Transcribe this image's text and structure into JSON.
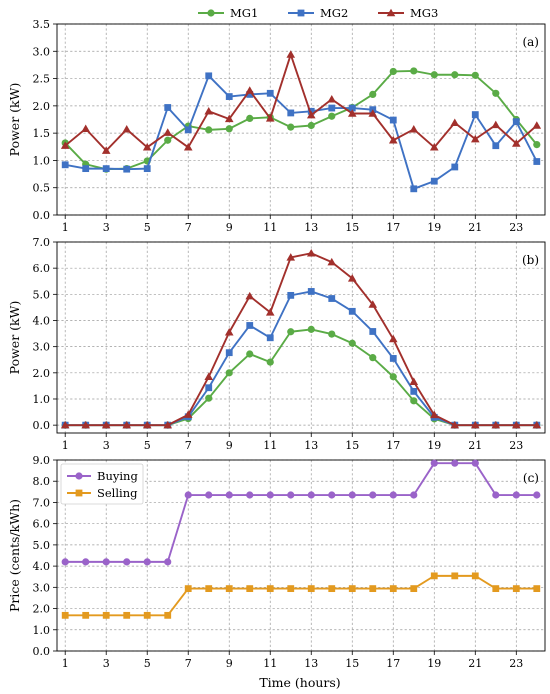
{
  "colors": {
    "MG1": "#5aab46",
    "MG2": "#3f72c4",
    "MG3": "#a2302c",
    "Buying": "#9a63c9",
    "Selling": "#e39a1f",
    "grid": "#9a9a9a"
  },
  "legend_top": [
    "MG1",
    "MG2",
    "MG3"
  ],
  "xlabel": "Time (hours)",
  "chart_data": [
    {
      "type": "line",
      "panel_label": "(a)",
      "ylabel": "Power (kW)",
      "ylim": [
        0,
        3.5
      ],
      "yticks": [
        0,
        0.5,
        1,
        1.5,
        2,
        2.5,
        3,
        3.5
      ],
      "ytick_labels": [
        "0.0",
        "0.5",
        "1.0",
        "1.5",
        "2.0",
        "2.5",
        "3.0",
        "3.5"
      ],
      "xlim": [
        0.6,
        24.4
      ],
      "xticks": [
        1,
        3,
        5,
        7,
        9,
        11,
        13,
        15,
        17,
        19,
        21,
        23
      ],
      "grid": true,
      "x": [
        1,
        2,
        3,
        4,
        5,
        6,
        7,
        8,
        9,
        10,
        11,
        12,
        13,
        14,
        15,
        16,
        17,
        18,
        19,
        20,
        21,
        22,
        23,
        24
      ],
      "series": [
        {
          "name": "MG1",
          "marker": "circle",
          "values": [
            1.32,
            0.93,
            0.84,
            0.85,
            0.99,
            1.37,
            1.63,
            1.56,
            1.58,
            1.77,
            1.79,
            1.61,
            1.64,
            1.81,
            1.97,
            2.21,
            2.63,
            2.64,
            2.57,
            2.57,
            2.56,
            2.23,
            1.75,
            1.29
          ]
        },
        {
          "name": "MG2",
          "marker": "square",
          "values": [
            0.92,
            0.85,
            0.85,
            0.84,
            0.85,
            1.97,
            1.56,
            2.55,
            2.17,
            2.21,
            2.23,
            1.87,
            1.9,
            1.96,
            1.96,
            1.93,
            1.74,
            0.48,
            0.62,
            0.88,
            1.84,
            1.27,
            1.71,
            0.98
          ]
        },
        {
          "name": "MG3",
          "marker": "triangle",
          "values": [
            1.27,
            1.58,
            1.18,
            1.57,
            1.24,
            1.51,
            1.24,
            1.9,
            1.76,
            2.28,
            1.77,
            2.94,
            1.83,
            2.12,
            1.86,
            1.86,
            1.37,
            1.57,
            1.24,
            1.69,
            1.39,
            1.65,
            1.31,
            1.64
          ]
        }
      ]
    },
    {
      "type": "line",
      "panel_label": "(b)",
      "ylabel": "Power (kW)",
      "ylim": [
        -0.3,
        7.0
      ],
      "yticks": [
        0,
        1,
        2,
        3,
        4,
        5,
        6,
        7
      ],
      "ytick_labels": [
        "0.0",
        "1.0",
        "2.0",
        "3.0",
        "4.0",
        "5.0",
        "6.0",
        "7.0"
      ],
      "xlim": [
        0.6,
        24.4
      ],
      "xticks": [
        1,
        3,
        5,
        7,
        9,
        11,
        13,
        15,
        17,
        19,
        21,
        23
      ],
      "grid": true,
      "x": [
        1,
        2,
        3,
        4,
        5,
        6,
        7,
        8,
        9,
        10,
        11,
        12,
        13,
        14,
        15,
        16,
        17,
        18,
        19,
        20,
        21,
        22,
        23,
        24
      ],
      "series": [
        {
          "name": "MG1",
          "marker": "circle",
          "values": [
            0,
            0,
            0,
            0,
            0,
            0,
            0.25,
            1.03,
            2.0,
            2.72,
            2.41,
            3.57,
            3.66,
            3.48,
            3.13,
            2.58,
            1.85,
            0.93,
            0.24,
            0,
            0,
            0,
            0,
            0
          ]
        },
        {
          "name": "MG2",
          "marker": "square",
          "values": [
            0,
            0,
            0,
            0,
            0,
            0,
            0.32,
            1.43,
            2.77,
            3.81,
            3.34,
            4.96,
            5.11,
            4.84,
            4.35,
            3.58,
            2.55,
            1.29,
            0.3,
            0,
            0,
            0,
            0,
            0
          ]
        },
        {
          "name": "MG3",
          "marker": "triangle",
          "values": [
            0,
            0,
            0,
            0,
            0,
            0,
            0.4,
            1.85,
            3.55,
            4.93,
            4.31,
            6.41,
            6.57,
            6.23,
            5.61,
            4.61,
            3.29,
            1.66,
            0.39,
            0,
            0,
            0,
            0,
            0
          ]
        }
      ]
    },
    {
      "type": "line",
      "panel_label": "(c)",
      "ylabel": "Price (cents/kWh)",
      "ylim": [
        0,
        9.0
      ],
      "yticks": [
        0,
        1,
        2,
        3,
        4,
        5,
        6,
        7,
        8,
        9
      ],
      "ytick_labels": [
        "0.0",
        "1.0",
        "2.0",
        "3.0",
        "4.0",
        "5.0",
        "6.0",
        "7.0",
        "8.0",
        "9.0"
      ],
      "xlim": [
        0.6,
        24.4
      ],
      "xticks": [
        1,
        3,
        5,
        7,
        9,
        11,
        13,
        15,
        17,
        19,
        21,
        23
      ],
      "grid": true,
      "legend_placement": "top-left",
      "x": [
        1,
        2,
        3,
        4,
        5,
        6,
        7,
        8,
        9,
        10,
        11,
        12,
        13,
        14,
        15,
        16,
        17,
        18,
        19,
        20,
        21,
        22,
        23,
        24
      ],
      "series": [
        {
          "name": "Buying",
          "marker": "circle",
          "values": [
            4.2,
            4.2,
            4.2,
            4.2,
            4.2,
            4.2,
            7.35,
            7.35,
            7.35,
            7.35,
            7.35,
            7.35,
            7.35,
            7.35,
            7.35,
            7.35,
            7.35,
            7.35,
            8.85,
            8.85,
            8.85,
            7.35,
            7.35,
            7.35
          ]
        },
        {
          "name": "Selling",
          "marker": "square",
          "values": [
            1.68,
            1.68,
            1.68,
            1.68,
            1.68,
            1.68,
            2.94,
            2.94,
            2.94,
            2.94,
            2.94,
            2.94,
            2.94,
            2.94,
            2.94,
            2.94,
            2.94,
            2.94,
            3.54,
            3.54,
            3.54,
            2.94,
            2.94,
            2.94
          ]
        }
      ]
    }
  ]
}
